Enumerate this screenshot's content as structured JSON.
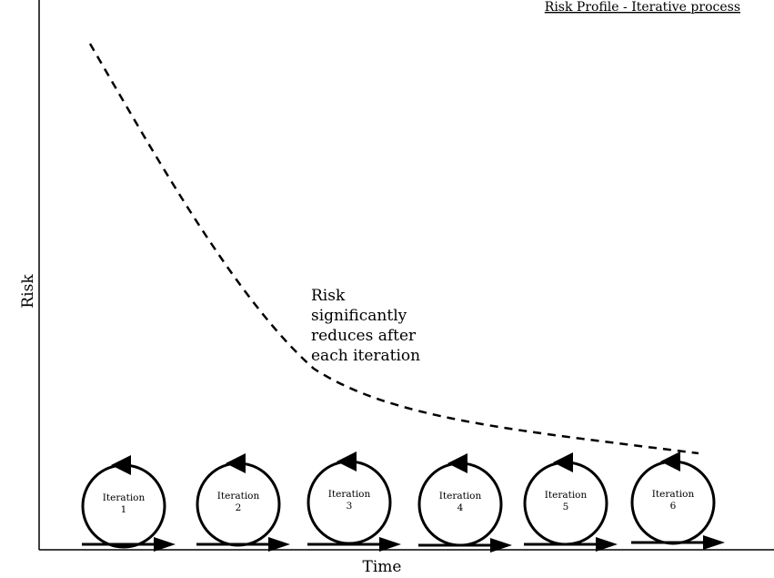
{
  "title": "Risk Profile - Iterative process",
  "axes": {
    "y_label": "Risk",
    "x_label": "Time"
  },
  "annotation": [
    "Risk",
    "significantly",
    "reduces after",
    "each iteration"
  ],
  "iterations": [
    {
      "word": "Iteration",
      "number": "1"
    },
    {
      "word": "Iteration",
      "number": "2"
    },
    {
      "word": "Iteration",
      "number": "3"
    },
    {
      "word": "Iteration",
      "number": "4"
    },
    {
      "word": "Iteration",
      "number": "5"
    },
    {
      "word": "Iteration",
      "number": "6"
    }
  ],
  "colors": {
    "ink": "#000000",
    "background": "#ffffff"
  }
}
